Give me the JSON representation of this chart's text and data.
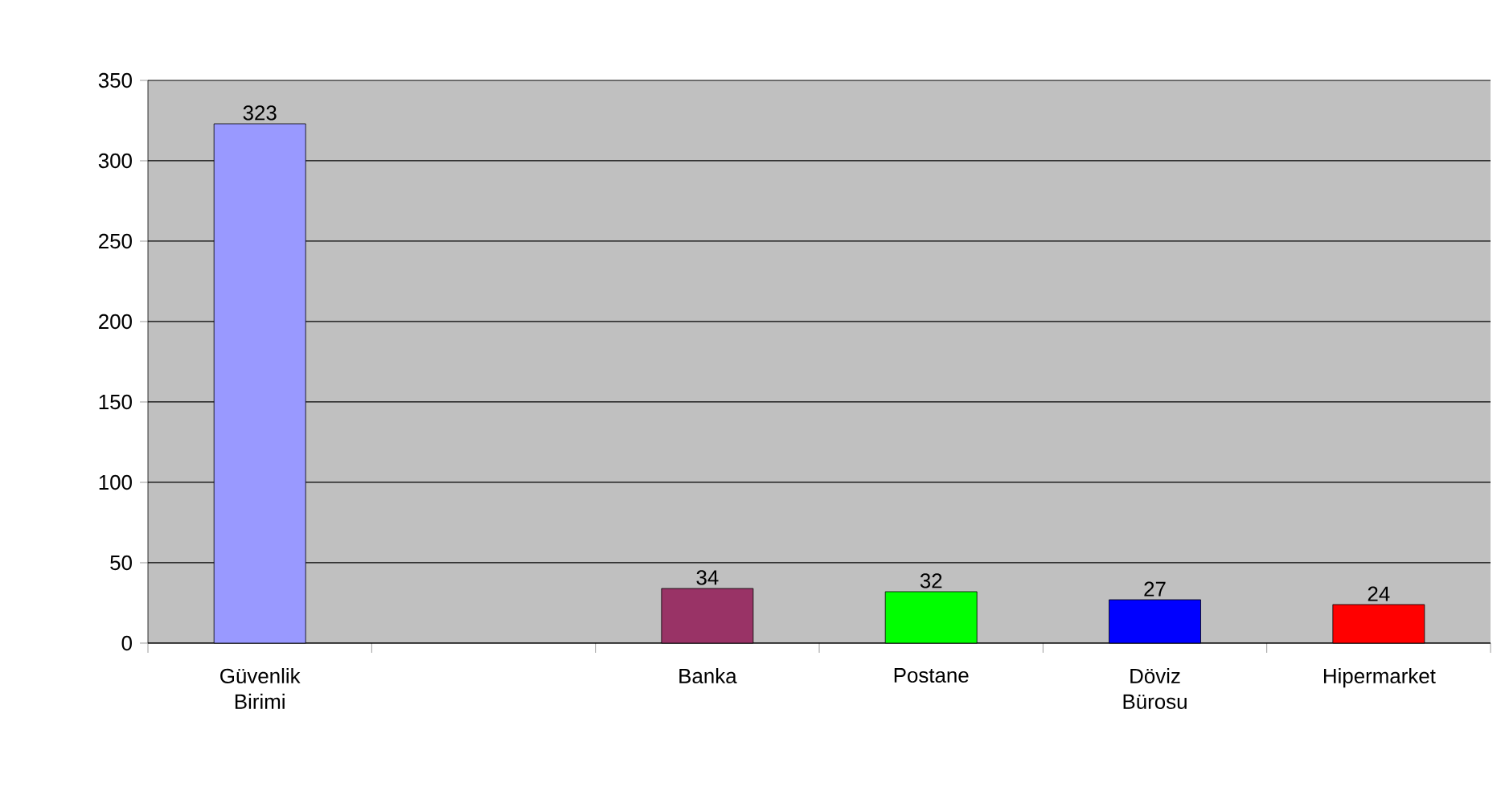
{
  "chart_data": {
    "type": "bar",
    "categories": [
      "Güvenlik Birimi",
      null,
      "Banka",
      "Postane",
      "Döviz Bürosu",
      "Hipermarket"
    ],
    "values": [
      323,
      null,
      34,
      32,
      27,
      24
    ],
    "colors": [
      "#9999ff",
      "#993366",
      "#993366",
      "#00ff00",
      "#0000ff",
      "#ff0000"
    ],
    "ylim": [
      0,
      350
    ],
    "yticks": [
      0,
      50,
      100,
      150,
      200,
      250,
      300,
      350
    ],
    "grid": "y",
    "data_labels": true
  }
}
